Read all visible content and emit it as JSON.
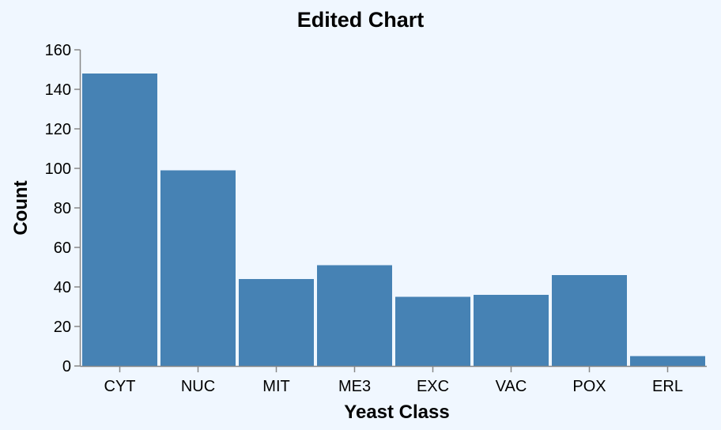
{
  "chart_data": {
    "type": "bar",
    "title": "Edited Chart",
    "xlabel": "Yeast Class",
    "ylabel": "Count",
    "categories": [
      "CYT",
      "NUC",
      "MIT",
      "ME3",
      "EXC",
      "VAC",
      "POX",
      "ERL"
    ],
    "values": [
      148,
      99,
      44,
      51,
      35,
      36,
      46,
      5
    ],
    "ylim": [
      0,
      160
    ],
    "yticks": [
      0,
      20,
      40,
      60,
      80,
      100,
      120,
      140,
      160
    ],
    "grid": false,
    "legend": "none",
    "bar_color": "#4682b4",
    "background_color": "#f0f7ff"
  }
}
